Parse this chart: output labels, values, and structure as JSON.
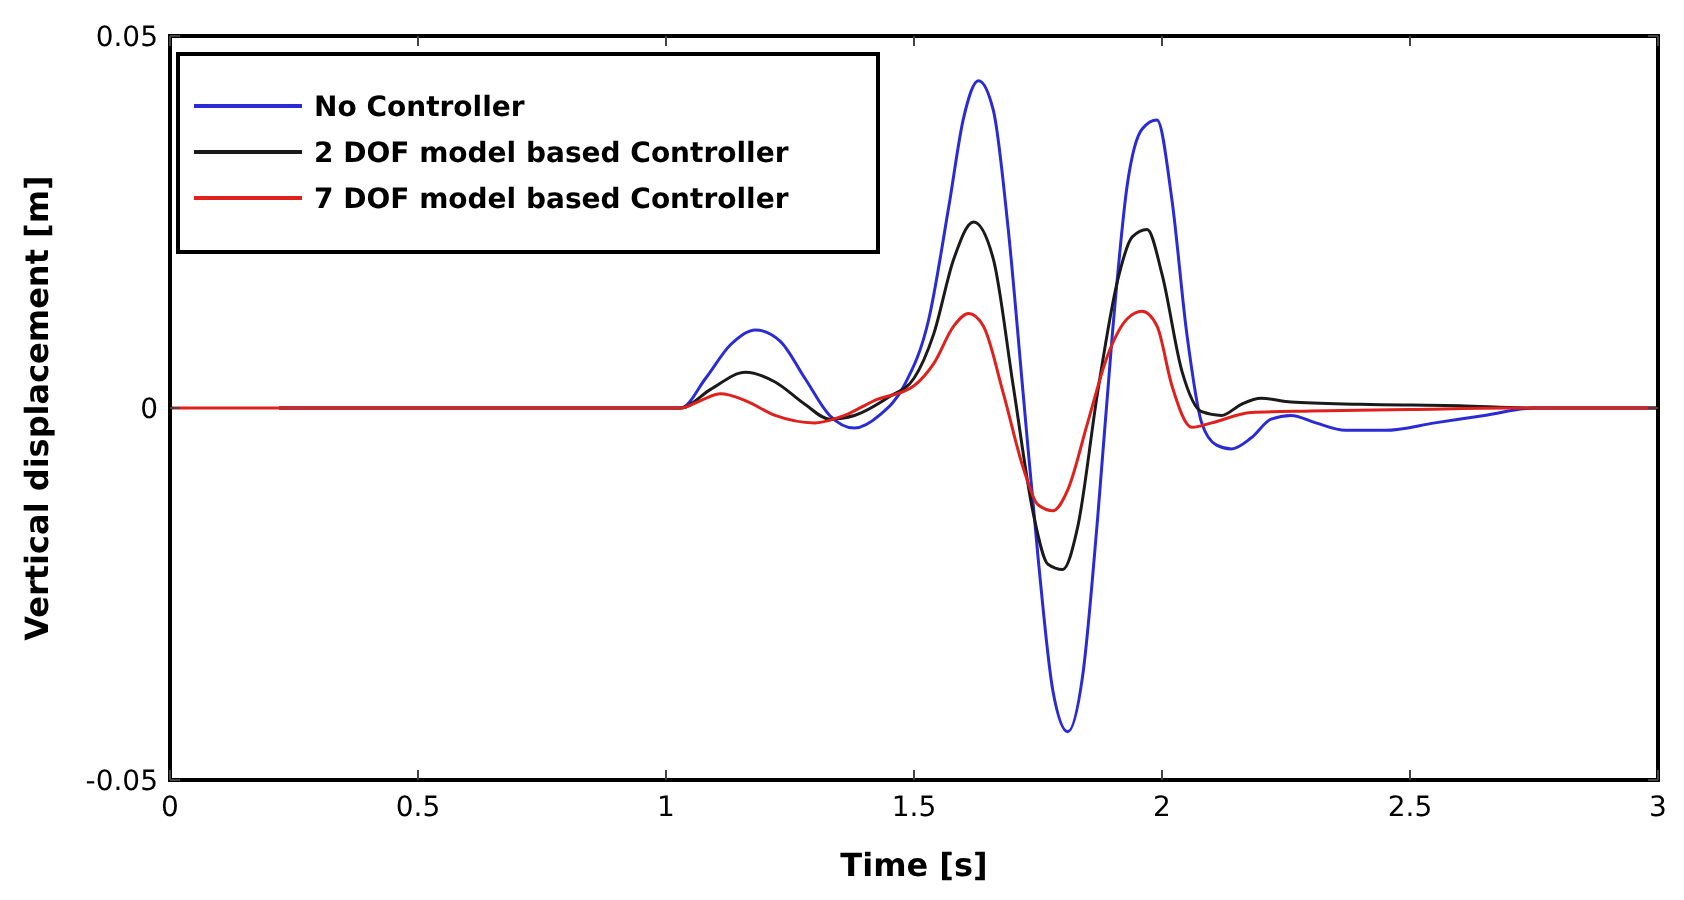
{
  "chart_data": {
    "type": "line",
    "xlabel": "Time [s]",
    "ylabel": "Vertical displacement [m]",
    "xlim": [
      0,
      3
    ],
    "xticks": [
      0,
      0.5,
      1,
      1.5,
      2,
      2.5,
      3
    ],
    "ylim": [
      -0.05,
      0.05
    ],
    "yticks": [
      -0.05,
      0,
      0.05
    ],
    "grid": false,
    "legend": "top left",
    "marker": "none",
    "line_style": "solid",
    "series": [
      {
        "name": "No Controller",
        "color": "#2b2bd6",
        "x": [
          0.22,
          1.03,
          1.08,
          1.13,
          1.18,
          1.23,
          1.28,
          1.33,
          1.38,
          1.43,
          1.48,
          1.53,
          1.57,
          1.6,
          1.63,
          1.66,
          1.69,
          1.72,
          1.75,
          1.78,
          1.81,
          1.84,
          1.87,
          1.9,
          1.93,
          1.96,
          1.99,
          2.02,
          2.05,
          2.08,
          2.11,
          2.14,
          2.18,
          2.22,
          2.26,
          2.31,
          2.37,
          2.45,
          2.55,
          2.65,
          2.75,
          3
        ],
        "values": [
          0,
          0,
          0.004,
          0.0085,
          0.0105,
          0.009,
          0.004,
          -0.001,
          -0.0027,
          -0.001,
          0.003,
          0.012,
          0.027,
          0.039,
          0.044,
          0.04,
          0.024,
          0.002,
          -0.02,
          -0.038,
          -0.0435,
          -0.036,
          -0.015,
          0.01,
          0.03,
          0.0375,
          0.0387,
          0.028,
          0.01,
          -0.002,
          -0.005,
          -0.0055,
          -0.004,
          -0.0015,
          -0.001,
          -0.002,
          -0.003,
          -0.003,
          -0.002,
          -0.001,
          0,
          0
        ]
      },
      {
        "name": "2 DOF model based Controller",
        "color": "#1a1a1a",
        "x": [
          0.22,
          1.03,
          1.09,
          1.16,
          1.22,
          1.28,
          1.33,
          1.38,
          1.45,
          1.5,
          1.54,
          1.58,
          1.62,
          1.66,
          1.7,
          1.74,
          1.77,
          1.8,
          1.83,
          1.87,
          1.91,
          1.94,
          1.97,
          2.0,
          2.04,
          2.08,
          2.12,
          2.16,
          2.2,
          2.26,
          2.4,
          2.6,
          2.75,
          3
        ],
        "values": [
          0,
          0,
          0.0025,
          0.0048,
          0.0035,
          0.0005,
          -0.0015,
          -0.001,
          0.0015,
          0.004,
          0.01,
          0.02,
          0.025,
          0.02,
          0.003,
          -0.014,
          -0.021,
          -0.0217,
          -0.016,
          0.002,
          0.017,
          0.023,
          0.024,
          0.018,
          0.005,
          -0.0005,
          -0.001,
          0.0005,
          0.0013,
          0.0008,
          0.0005,
          0.0003,
          0,
          0
        ]
      },
      {
        "name": "7 DOF model based Controller",
        "color": "#e0201c",
        "x": [
          0,
          1.03,
          1.07,
          1.11,
          1.16,
          1.22,
          1.3,
          1.36,
          1.42,
          1.5,
          1.54,
          1.58,
          1.61,
          1.64,
          1.68,
          1.72,
          1.75,
          1.78,
          1.81,
          1.85,
          1.89,
          1.93,
          1.96,
          1.99,
          2.02,
          2.06,
          2.1,
          2.18,
          2.3,
          2.5,
          2.7,
          3
        ],
        "values": [
          0,
          0,
          0.001,
          0.0019,
          0.001,
          -0.001,
          -0.002,
          -0.001,
          0.001,
          0.003,
          0.006,
          0.011,
          0.0127,
          0.011,
          0.002,
          -0.008,
          -0.013,
          -0.0138,
          -0.011,
          -0.002,
          0.007,
          0.012,
          0.013,
          0.011,
          0.003,
          -0.0026,
          -0.002,
          -0.0006,
          -0.0004,
          -0.0002,
          0,
          0
        ]
      }
    ]
  }
}
